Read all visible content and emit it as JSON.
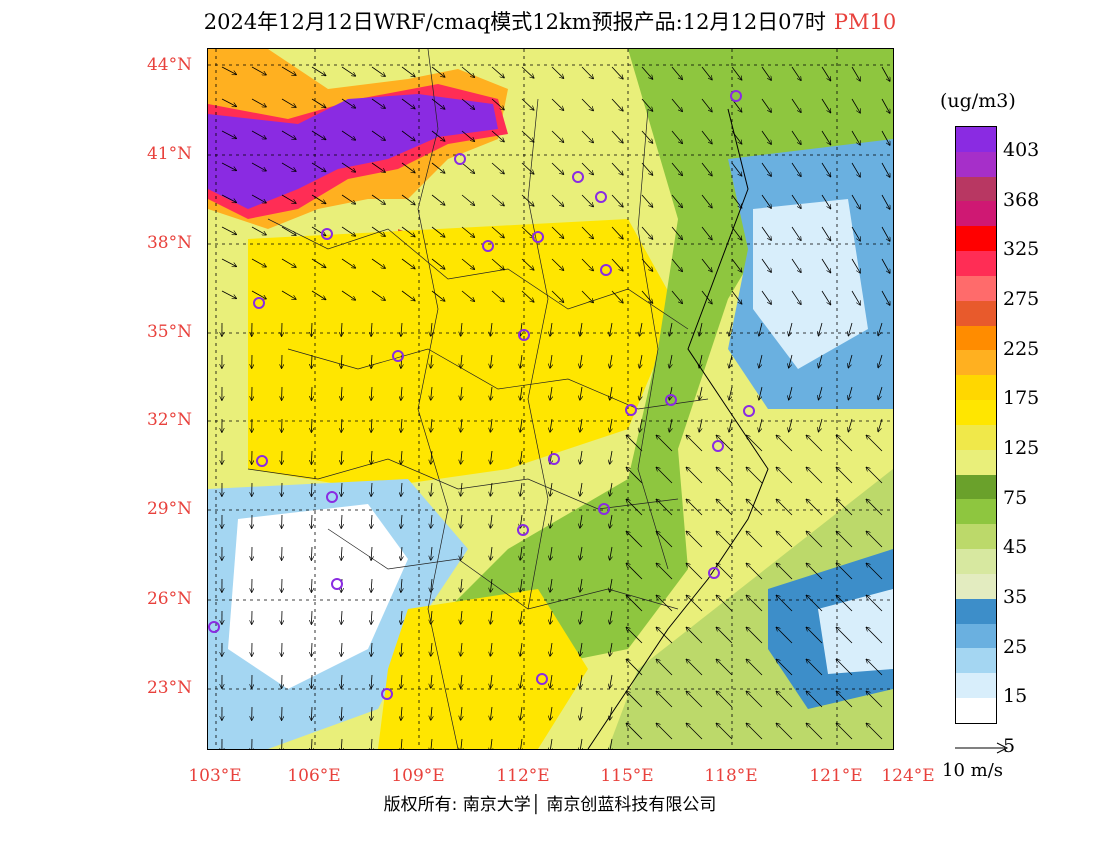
{
  "title": {
    "text": "2024年12月12日WRF/cmaq模式12km预报产品:12月12日07时",
    "species": "PM10",
    "species_color": "#e8413c"
  },
  "map": {
    "lat_labels": [
      "44°N",
      "41°N",
      "38°N",
      "35°N",
      "32°N",
      "29°N",
      "26°N",
      "23°N"
    ],
    "lon_labels": [
      "103°E",
      "106°E",
      "109°E",
      "112°E",
      "115°E",
      "118°E",
      "121°E",
      "124°E"
    ],
    "label_color": "#e8413c",
    "cities_marker": "circle-marker"
  },
  "legend": {
    "unit": "(ug/m3)",
    "ticks": [
      "403",
      "368",
      "325",
      "275",
      "225",
      "175",
      "125",
      "75",
      "45",
      "35",
      "25",
      "15",
      "5"
    ],
    "colors": [
      "#8a2be2",
      "#a62fc9",
      "#b83762",
      "#cf1873",
      "#ff0000",
      "#ff2d55",
      "#ff6b6b",
      "#e85a2c",
      "#ff8c00",
      "#ffb020",
      "#ffd700",
      "#ffe600",
      "#f0e84a",
      "#e9ef7a",
      "#6aa12b",
      "#8ec63f",
      "#bcd96a",
      "#d7e8a0",
      "#e3ecc0",
      "#3d8ec9",
      "#6ab0e0",
      "#a4d6f2",
      "#d8eefb",
      "#ffffff"
    ]
  },
  "wind_reference": {
    "label": "10 m/s"
  },
  "copyright": {
    "text": "版权所有: 南京大学│ 南京创蓝科技有限公司"
  }
}
